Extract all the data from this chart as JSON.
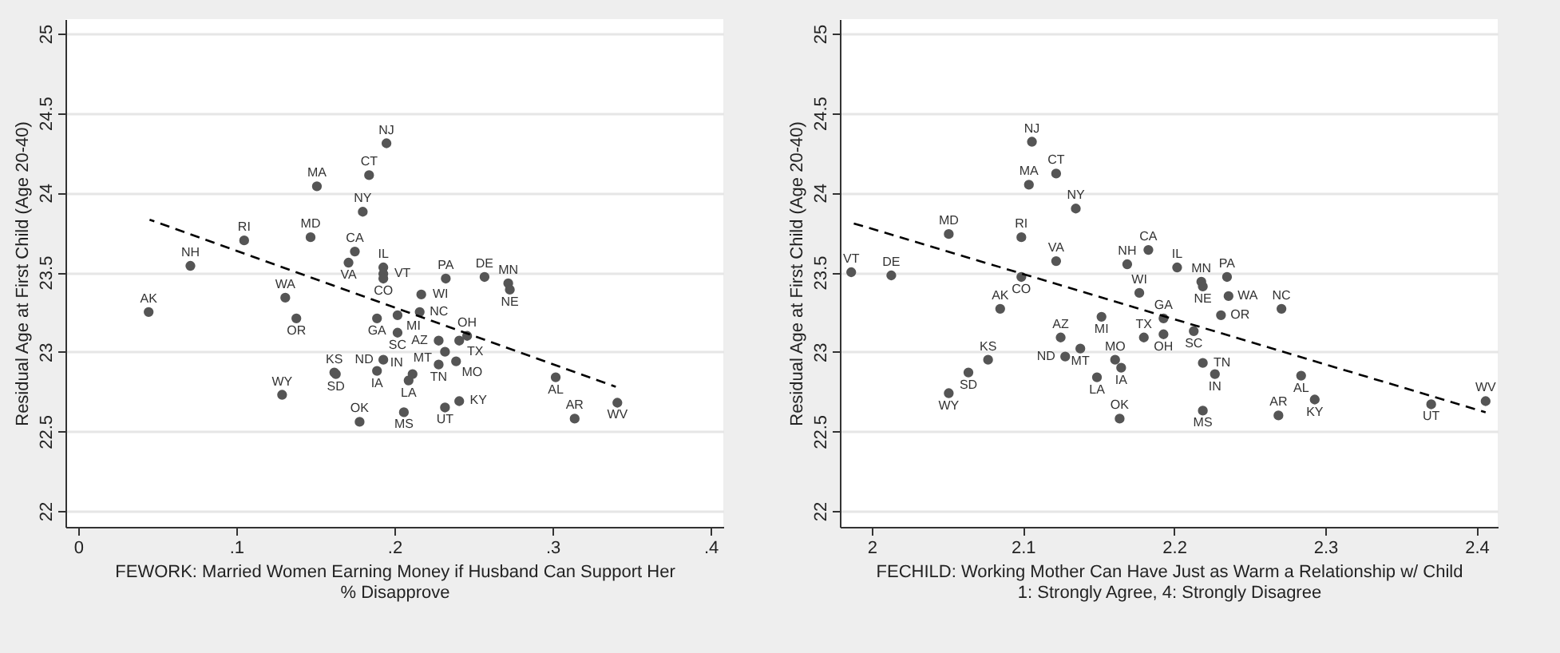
{
  "chart_data": [
    {
      "type": "scatter",
      "xlabel": "FEWORK: Married Women Earning Money if Husband Can Support Her\n% Disapprove",
      "ylabel": "Residual Age at First Child (Age 20-40)",
      "xlim": [
        -0.008,
        0.408
      ],
      "ylim": [
        21.9,
        25.09
      ],
      "xticks": [
        0,
        {
          "value": 0.1,
          "label": ".1"
        },
        {
          "value": 0.2,
          "label": ".2"
        },
        {
          "value": 0.3,
          "label": ".3"
        },
        {
          "value": 0.4,
          "label": ".4"
        }
      ],
      "yticks": [
        22,
        22.5,
        23,
        23.5,
        24,
        24.5,
        25
      ],
      "grid": "y",
      "series": [
        {
          "type": "scatter",
          "color": "#555555",
          "marker": "circle",
          "x": [
            0.195,
            0.184,
            0.151,
            0.18,
            0.147,
            0.105,
            0.071,
            0.175,
            0.171,
            0.193,
            0.193,
            0.193,
            0.2325,
            0.257,
            0.272,
            0.273,
            0.217,
            0.131,
            0.0446,
            0.138,
            0.189,
            0.202,
            0.216,
            0.202,
            0.228,
            0.241,
            0.246,
            0.232,
            0.228,
            0.239,
            0.193,
            0.189,
            0.162,
            0.163,
            0.209,
            0.2115,
            0.129,
            0.178,
            0.206,
            0.232,
            0.241,
            0.302,
            0.314,
            0.341
          ],
          "values": [
            24.31,
            24.11,
            24.04,
            23.88,
            23.72,
            23.7,
            23.54,
            23.63,
            23.56,
            23.53,
            23.49,
            23.46,
            23.46,
            23.47,
            23.43,
            23.39,
            23.36,
            23.34,
            23.25,
            23.21,
            23.21,
            23.23,
            23.25,
            23.12,
            23.07,
            23.07,
            23.1,
            23.0,
            22.92,
            22.94,
            22.95,
            22.88,
            22.87,
            22.86,
            22.82,
            22.86,
            22.73,
            22.56,
            22.62,
            22.65,
            22.69,
            22.84,
            22.58,
            22.68
          ],
          "value_labels": [
            "NJ",
            "CT",
            "MA",
            "NY",
            "MD",
            "RI",
            "NH",
            "CA",
            "VA",
            "IL",
            "VT",
            "CO",
            "PA",
            "DE",
            "MN",
            "NE",
            "WI",
            "WA",
            "AK",
            "OR",
            "GA",
            "MI",
            "NC",
            "SC",
            "AZ",
            "TX",
            "OH",
            "MT",
            "TN",
            "MO",
            "ND",
            "IA",
            "KS",
            "SD",
            "LA",
            "IN",
            "WY",
            "OK",
            "MS",
            "UT",
            "KY",
            "AL",
            "AR",
            "WV"
          ]
        },
        {
          "type": "line",
          "color": "#000000",
          "line_style": "dashed",
          "x": [
            0.0452,
            0.34
          ],
          "values": [
            23.83,
            22.78
          ]
        }
      ]
    },
    {
      "type": "scatter",
      "xlabel": "FECHILD: Working Mother Can Have Just as Warm a Relationship w/ Child\n1: Strongly Agree, 4: Strongly Disagree",
      "ylabel": "Residual Age at First Child (Age 20-40)",
      "xlim": [
        1.979,
        2.414
      ],
      "ylim": [
        21.9,
        25.09
      ],
      "xticks": [
        2,
        2.1,
        2.2,
        2.3,
        2.4
      ],
      "yticks": [
        22,
        22.5,
        23,
        23.5,
        24,
        24.5,
        25
      ],
      "grid": "y",
      "series": [
        {
          "type": "scatter",
          "color": "#555555",
          "marker": "circle",
          "x": [
            1.9865,
            2.013,
            2.051,
            2.099,
            2.106,
            2.104,
            2.122,
            2.135,
            2.122,
            2.099,
            2.169,
            2.183,
            2.202,
            2.218,
            2.219,
            2.235,
            2.236,
            2.177,
            2.085,
            2.152,
            2.193,
            2.231,
            2.271,
            2.213,
            2.193,
            2.18,
            2.125,
            2.138,
            2.128,
            2.077,
            2.064,
            2.051,
            2.161,
            2.165,
            2.149,
            2.164,
            2.219,
            2.227,
            2.219,
            2.269,
            2.284,
            2.293,
            2.37,
            2.406
          ],
          "values": [
            23.5,
            23.48,
            23.74,
            23.72,
            24.32,
            24.05,
            24.12,
            23.9,
            23.57,
            23.47,
            23.55,
            23.64,
            23.53,
            23.44,
            23.41,
            23.47,
            23.35,
            23.37,
            23.27,
            23.22,
            23.21,
            23.23,
            23.27,
            23.13,
            23.11,
            23.09,
            23.09,
            23.02,
            22.97,
            22.95,
            22.87,
            22.74,
            22.95,
            22.9,
            22.84,
            22.58,
            22.93,
            22.86,
            22.63,
            22.6,
            22.85,
            22.7,
            22.67,
            22.69
          ],
          "value_labels": [
            "VT",
            "DE",
            "MD",
            "RI",
            "NJ",
            "MA",
            "CT",
            "NY",
            "VA",
            "CO",
            "NH",
            "CA",
            "IL",
            "MN",
            "NE",
            "PA",
            "WA",
            "WI",
            "AK",
            "MI",
            "GA",
            "OR",
            "NC",
            "SC",
            "OH",
            "TX",
            "AZ",
            "MT",
            "ND",
            "KS",
            "SD",
            "WY",
            "MO",
            "IA",
            "LA",
            "OK",
            "TN",
            "IN",
            "MS",
            "AR",
            "AL",
            "KY",
            "UT",
            "WV"
          ]
        },
        {
          "type": "line",
          "color": "#000000",
          "line_style": "dashed",
          "x": [
            1.987,
            2.406
          ],
          "values": [
            23.81,
            22.62
          ]
        }
      ]
    }
  ]
}
